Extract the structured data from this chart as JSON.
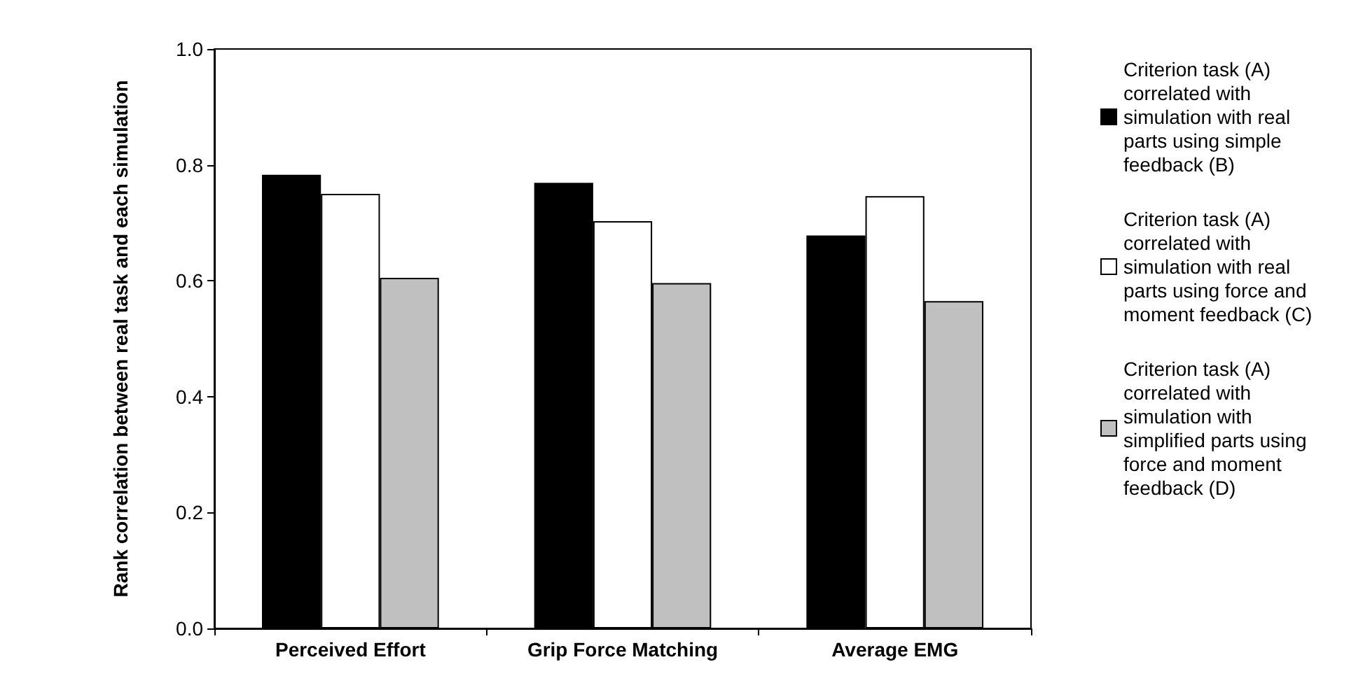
{
  "chart_data": {
    "type": "bar",
    "ylabel": "Rank correlation between real task and each simulation",
    "categories": [
      "Perceived Effort",
      "Grip Force Matching",
      "Average EMG"
    ],
    "series": [
      {
        "name": "Criterion task (A) correlated with simulation with real parts using simple feedback (B)",
        "color": "#000000",
        "values": [
          0.783,
          0.769,
          0.678
        ]
      },
      {
        "name": "Criterion task (A) correlated with simulation with real parts using force and moment feedback (C)",
        "color": "#ffffff",
        "values": [
          0.75,
          0.703,
          0.746
        ]
      },
      {
        "name": "Criterion task (A) correlated with simulation with simplified parts using force and moment feedback (D)",
        "color": "#c0c0c0",
        "values": [
          0.605,
          0.596,
          0.565
        ]
      }
    ],
    "ylim": [
      0,
      1
    ],
    "yticks": [
      {
        "value": 0,
        "label": "0.0"
      },
      {
        "value": 0.2,
        "label": "0.2"
      },
      {
        "value": 0.4,
        "label": "0.4"
      },
      {
        "value": 0.6,
        "label": "0.6"
      },
      {
        "value": 0.8,
        "label": "0.8"
      },
      {
        "value": 1,
        "label": "1.0"
      }
    ],
    "grid": false,
    "legend": "right"
  }
}
